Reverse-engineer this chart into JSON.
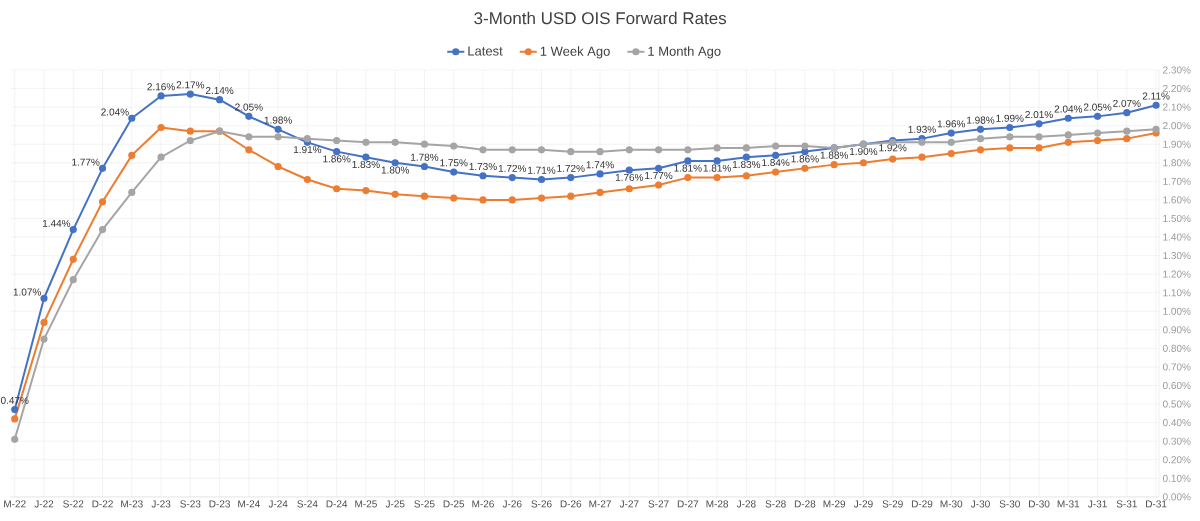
{
  "chart_data": {
    "type": "line",
    "title": "3-Month USD OIS Forward Rates",
    "categories": [
      "M-22",
      "J-22",
      "S-22",
      "D-22",
      "M-23",
      "J-23",
      "S-23",
      "D-23",
      "M-24",
      "J-24",
      "S-24",
      "D-24",
      "M-25",
      "J-25",
      "S-25",
      "D-25",
      "M-26",
      "J-26",
      "S-26",
      "D-26",
      "M-27",
      "J-27",
      "S-27",
      "D-27",
      "M-28",
      "J-28",
      "S-28",
      "D-28",
      "M-29",
      "J-29",
      "S-29",
      "D-29",
      "M-30",
      "J-30",
      "S-30",
      "D-30",
      "M-31",
      "J-31",
      "S-31",
      "D-31"
    ],
    "series": [
      {
        "name": "Latest",
        "color": "#4472c4",
        "values": [
          0.47,
          1.07,
          1.44,
          1.77,
          2.04,
          2.16,
          2.17,
          2.14,
          2.05,
          1.98,
          1.91,
          1.86,
          1.83,
          1.8,
          1.78,
          1.75,
          1.73,
          1.72,
          1.71,
          1.72,
          1.74,
          1.76,
          1.77,
          1.81,
          1.81,
          1.83,
          1.84,
          1.86,
          1.88,
          1.9,
          1.92,
          1.93,
          1.96,
          1.98,
          1.99,
          2.01,
          2.04,
          2.05,
          2.07,
          2.11
        ],
        "value_labels": [
          "0.47%",
          "1.07%",
          "1.44%",
          "1.77%",
          "2.04%",
          "2.16%",
          "2.17%",
          "2.14%",
          "2.05%",
          "1.98%",
          "1.91%",
          "1.86%",
          "1.83%",
          "1.80%",
          "1.78%",
          "1.75%",
          "1.73%",
          "1.72%",
          "1.71%",
          "1.72%",
          "1.74%",
          "1.76%",
          "1.77%",
          "1.81%",
          "1.81%",
          "1.83%",
          "1.84%",
          "1.86%",
          "1.88%",
          "1.90%",
          "1.92%",
          "1.93%",
          "1.96%",
          "1.98%",
          "1.99%",
          "2.01%",
          "2.04%",
          "2.05%",
          "2.07%",
          "2.11%"
        ]
      },
      {
        "name": "1 Week Ago",
        "color": "#ed7d31",
        "values": [
          0.42,
          0.94,
          1.28,
          1.59,
          1.84,
          1.99,
          1.97,
          1.97,
          1.87,
          1.78,
          1.71,
          1.66,
          1.65,
          1.63,
          1.62,
          1.61,
          1.6,
          1.6,
          1.61,
          1.62,
          1.64,
          1.66,
          1.68,
          1.72,
          1.72,
          1.73,
          1.75,
          1.77,
          1.79,
          1.8,
          1.82,
          1.83,
          1.85,
          1.87,
          1.88,
          1.88,
          1.91,
          1.92,
          1.93,
          1.96
        ]
      },
      {
        "name": "1 Month Ago",
        "color": "#a5a5a5",
        "values": [
          0.31,
          0.85,
          1.17,
          1.44,
          1.64,
          1.83,
          1.92,
          1.97,
          1.94,
          1.94,
          1.93,
          1.92,
          1.91,
          1.91,
          1.9,
          1.89,
          1.87,
          1.87,
          1.87,
          1.86,
          1.86,
          1.87,
          1.87,
          1.87,
          1.88,
          1.88,
          1.89,
          1.89,
          1.88,
          1.9,
          1.91,
          1.91,
          1.91,
          1.93,
          1.94,
          1.94,
          1.95,
          1.96,
          1.97,
          1.98
        ]
      }
    ],
    "ylim": [
      0,
      2.3
    ],
    "yticks": [
      {
        "value": 0,
        "label": "0.00%"
      },
      {
        "value": 0.1,
        "label": "0.10%"
      },
      {
        "value": 0.2,
        "label": "0.20%"
      },
      {
        "value": 0.3,
        "label": "0.30%"
      },
      {
        "value": 0.4,
        "label": "0.40%"
      },
      {
        "value": 0.5,
        "label": "0.50%"
      },
      {
        "value": 0.6,
        "label": "0.60%"
      },
      {
        "value": 0.7,
        "label": "0.70%"
      },
      {
        "value": 0.8,
        "label": "0.80%"
      },
      {
        "value": 0.9,
        "label": "0.90%"
      },
      {
        "value": 1.0,
        "label": "1.00%"
      },
      {
        "value": 1.1,
        "label": "1.10%"
      },
      {
        "value": 1.2,
        "label": "1.20%"
      },
      {
        "value": 1.3,
        "label": "1.30%"
      },
      {
        "value": 1.4,
        "label": "1.40%"
      },
      {
        "value": 1.5,
        "label": "1.50%"
      },
      {
        "value": 1.6,
        "label": "1.60%"
      },
      {
        "value": 1.7,
        "label": "1.70%"
      },
      {
        "value": 1.8,
        "label": "1.80%"
      },
      {
        "value": 1.9,
        "label": "1.90%"
      },
      {
        "value": 2.0,
        "label": "2.00%"
      },
      {
        "value": 2.1,
        "label": "2.10%"
      },
      {
        "value": 2.2,
        "label": "2.20%"
      },
      {
        "value": 2.3,
        "label": "2.30%"
      }
    ],
    "grid": true,
    "legend": "top",
    "marker": "circle"
  }
}
